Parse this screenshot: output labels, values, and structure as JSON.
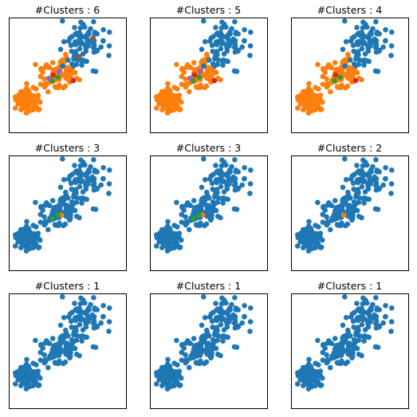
{
  "chart_data": [
    {
      "type": "scatter",
      "title": "#Clusters : 6",
      "clusters": 6
    },
    {
      "type": "scatter",
      "title": "#Clusters : 5",
      "clusters": 5
    },
    {
      "type": "scatter",
      "title": "#Clusters : 4",
      "clusters": 4
    },
    {
      "type": "scatter",
      "title": "#Clusters : 3",
      "clusters": 3
    },
    {
      "type": "scatter",
      "title": "#Clusters : 3",
      "clusters": 3
    },
    {
      "type": "scatter",
      "title": "#Clusters : 2",
      "clusters": 2
    },
    {
      "type": "scatter",
      "title": "#Clusters : 1",
      "clusters": 1
    },
    {
      "type": "scatter",
      "title": "#Clusters : 1",
      "clusters": 1
    },
    {
      "type": "scatter",
      "title": "#Clusters : 1",
      "clusters": 1
    }
  ],
  "colors": {
    "blue": "#1f77b4",
    "orange": "#ff7f0e",
    "green": "#2ca02c",
    "red": "#d62728",
    "purple": "#9467bd",
    "brown": "#8c564b"
  }
}
